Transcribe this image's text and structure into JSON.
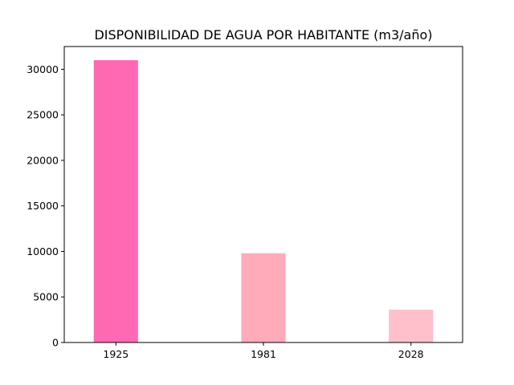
{
  "chart_data": {
    "type": "bar",
    "title": "DISPONIBILIDAD DE AGUA POR HABITANTE (m3/año)",
    "xlabel": "",
    "ylabel": "",
    "categories": [
      "1925",
      "1981",
      "2028"
    ],
    "values": [
      31000,
      9800,
      3600
    ],
    "colors": [
      "#ff69b4",
      "#ffabb9",
      "#ffc0cb"
    ],
    "ylim": [
      0,
      32500
    ],
    "yticks": [
      0,
      5000,
      10000,
      15000,
      20000,
      25000,
      30000
    ],
    "grid": false,
    "legend": "none"
  }
}
